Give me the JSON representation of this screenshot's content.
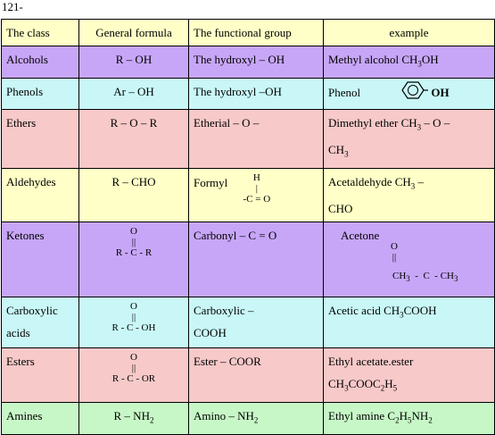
{
  "heading": "121-",
  "headers": {
    "class": "The class",
    "formula": "General formula",
    "group": "The functional group",
    "example": "example"
  },
  "rows": {
    "alcohols": {
      "class": "Alcohols",
      "formula": "R – OH",
      "group": "The hydroxyl   – OH",
      "example": "Methyl alcohol  CH",
      "example_sub": "3",
      "example_end": "OH"
    },
    "phenols": {
      "class": "Phenols",
      "formula": "Ar – OH",
      "group": "The hydroxyl  –OH",
      "example": "Phenol",
      "oh": "OH"
    },
    "ethers": {
      "class": "Ethers",
      "formula": "R – O – R",
      "group": "Etherial        – O –",
      "example": "Dimethyl ether   CH",
      "example_sub": "3",
      "example_mid": " – O –",
      "example_line2": "CH",
      "example_line2_sub": "3"
    },
    "aldehydes": {
      "class": "Aldehydes",
      "formula": "R – CHO",
      "group_label": "Formyl",
      "group_top": "H",
      "group_mid": "|",
      "group_bot": "-C = O",
      "example": "Acetaldehyde    CH",
      "example_sub": "3",
      "example_end": " –",
      "example_line2": "CHO"
    },
    "ketones": {
      "class": "Ketones",
      "formula_top": "O",
      "formula_mid": "||",
      "formula_bot": "R - C - R",
      "group": "Carbonyl   – C = O",
      "example": "Acetone",
      "ex_top": "O",
      "ex_mid": "||",
      "ex_bot": "CH  - C  - CH",
      "ex_sub1": "3",
      "ex_sub2": "3"
    },
    "carboxylic": {
      "class_line1": "Carboxylic",
      "class_line2": "acids",
      "formula_top": "O",
      "formula_mid": "||",
      "formula_bot": "R - C - OH",
      "group_line1": "Carboxylic    –",
      "group_line2": "COOH",
      "example": "Acetic acid  CH",
      "example_sub": "3",
      "example_end": "COOH"
    },
    "esters": {
      "class": "Esters",
      "formula_top": "O",
      "formula_mid": "||",
      "formula_bot": "R - C - OR",
      "group": "Ester         – COOR",
      "example": "Ethyl acetate.ester",
      "example_line2": "CH",
      "example_line2_sub1": "3",
      "example_line2_mid": "COOC",
      "example_line2_sub2": "2",
      "example_line2_b": "H",
      "example_line2_sub3": "5"
    },
    "amines": {
      "class": "Amines",
      "formula": "R – NH",
      "formula_sub": "2",
      "group": "Amino        – NH",
      "group_sub": "2",
      "example": "Ethyl amine  C",
      "example_sub1": "2",
      "example_mid": "H",
      "example_sub2": "5",
      "example_end": "NH",
      "example_sub3": "2"
    }
  },
  "colors": {
    "header": "#ffffc7",
    "purple": "#c7a6f7",
    "cyan": "#c9f7f7",
    "pink": "#f7c9c9",
    "green": "#c7f7c7"
  },
  "icons": {
    "phenol": "benzene-ring-icon"
  }
}
